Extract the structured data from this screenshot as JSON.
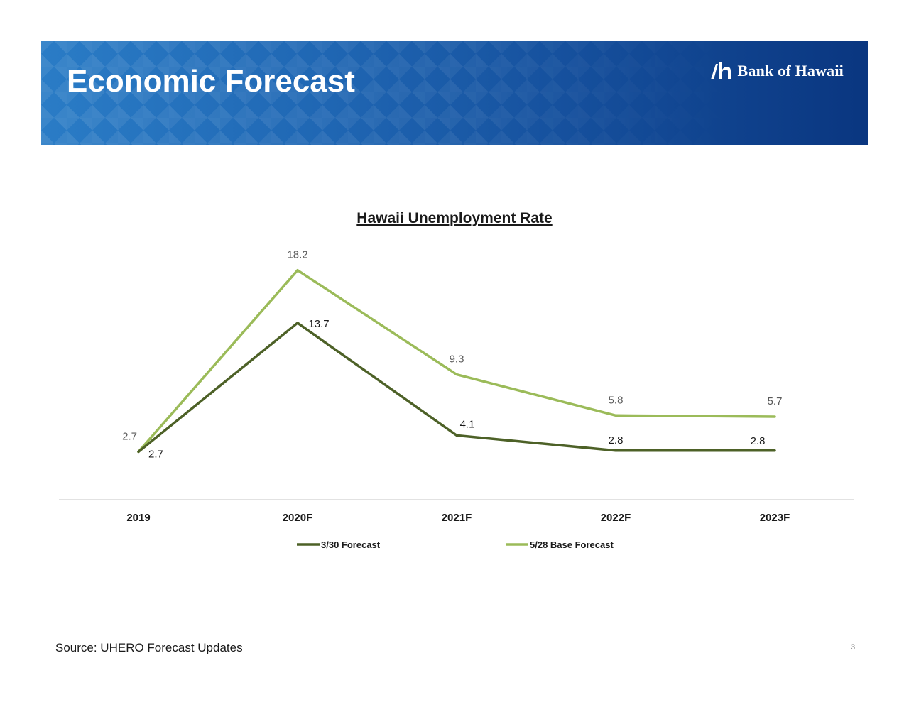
{
  "header": {
    "title": "Economic Forecast",
    "logo_text": "Bank of Hawaii",
    "logo_icon": "bank-of-hawaii-logo-icon"
  },
  "colors": {
    "banner_start": "#2a7cc6",
    "banner_end": "#0a3680",
    "series_dark": "#4d6127",
    "series_light": "#9bbb59"
  },
  "chart_data": {
    "type": "line",
    "title": "Hawaii Unemployment Rate",
    "categories": [
      "2019",
      "2020F",
      "2021F",
      "2022F",
      "2023F"
    ],
    "series": [
      {
        "name": "3/30 Forecast",
        "values": [
          2.7,
          13.7,
          4.1,
          2.8,
          2.8
        ],
        "color": "#4d6127"
      },
      {
        "name": "5/28 Base Forecast",
        "values": [
          2.7,
          18.2,
          9.3,
          5.8,
          5.7
        ],
        "color": "#9bbb59"
      }
    ],
    "xlabel": "",
    "ylabel": "",
    "ylim": [
      0,
      20
    ],
    "grid": false,
    "legend": "bottom"
  },
  "footer": {
    "source": "Source: UHERO Forecast Updates",
    "page_number": "3"
  }
}
